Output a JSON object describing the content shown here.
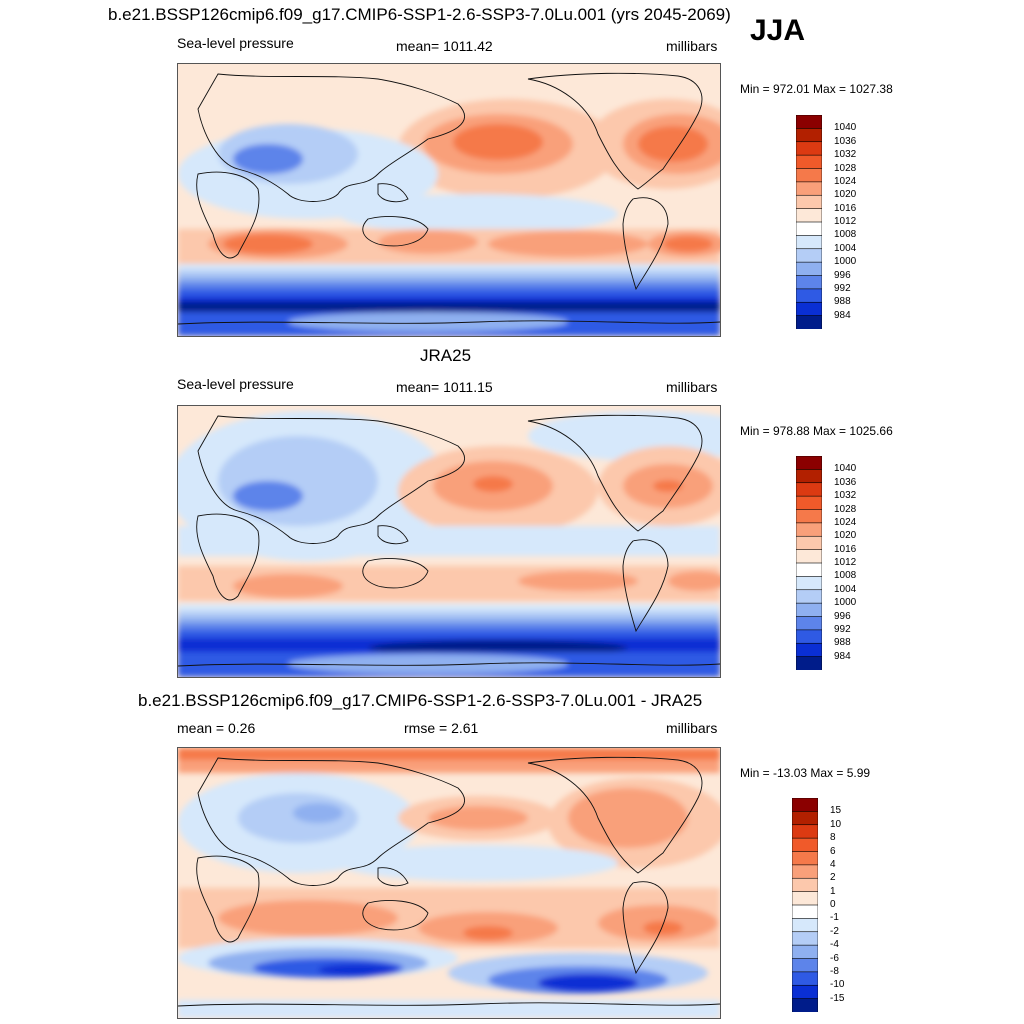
{
  "header": {
    "title": "b.e21.BSSP126cmip6.f09_g17.CMIP6-SSP1-2.6-SSP3-7.0Lu.001 (yrs 2045-2069)",
    "season": "JJA"
  },
  "panels": [
    {
      "id": "model",
      "panel_title": "",
      "left_label": "Sea-level pressure",
      "center_label": "mean= 1011.42",
      "right_label": "millibars",
      "minmax": "Min = 972.01 Max = 1027.38"
    },
    {
      "id": "obs",
      "panel_title": "JRA25",
      "left_label": "Sea-level pressure",
      "center_label": "mean= 1011.15",
      "right_label": "millibars",
      "minmax": "Min = 978.88 Max = 1025.66"
    },
    {
      "id": "diff",
      "panel_title": "b.e21.BSSP126cmip6.f09_g17.CMIP6-SSP1-2.6-SSP3-7.0Lu.001 - JRA25",
      "left_label": "mean =   0.26",
      "center_label": "rmse =   2.61",
      "right_label": "millibars",
      "minmax": "Min = -13.03 Max =   5.99"
    }
  ],
  "colorbars": {
    "abs": {
      "labels": [
        "1040",
        "1036",
        "1032",
        "1028",
        "1024",
        "1020",
        "1016",
        "1012",
        "1008",
        "1004",
        "1000",
        "996",
        "992",
        "988",
        "984"
      ],
      "colors": [
        "#8b0000",
        "#b22000",
        "#dc3a12",
        "#f05a2a",
        "#f5794a",
        "#f9a07a",
        "#fcc8ac",
        "#fde8d8",
        "#ffffff",
        "#d6e8fb",
        "#b4cdf6",
        "#8fb0f0",
        "#5d84ea",
        "#2f5ae4",
        "#0a2fd4",
        "#001c8a"
      ]
    },
    "diff": {
      "labels": [
        "15",
        "10",
        "8",
        "6",
        "4",
        "2",
        "1",
        "0",
        "-1",
        "-2",
        "-4",
        "-6",
        "-8",
        "-10",
        "-15"
      ],
      "colors": [
        "#8b0000",
        "#b22000",
        "#dc3a12",
        "#f05a2a",
        "#f5794a",
        "#f9a07a",
        "#fcc8ac",
        "#fde8d8",
        "#ffffff",
        "#d6e8fb",
        "#b4cdf6",
        "#8fb0f0",
        "#5d84ea",
        "#2f5ae4",
        "#0a2fd4",
        "#001c8a"
      ]
    }
  }
}
